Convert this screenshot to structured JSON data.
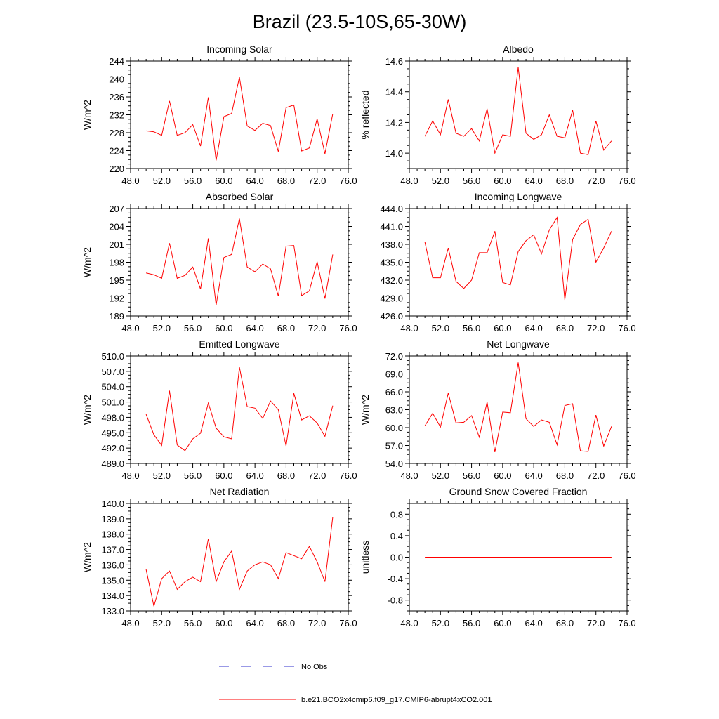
{
  "page": {
    "title": "Brazil (23.5-10S,65-30W)"
  },
  "colors": {
    "model": "#ff0000",
    "obs": "#3333cc",
    "axis": "#000000"
  },
  "chart_data": [
    {
      "type": "line",
      "title": "Incoming Solar",
      "ylabel": "W/m^2",
      "xlim": [
        48,
        76
      ],
      "ylim": [
        220,
        244
      ],
      "xticks": [
        48,
        52,
        56,
        60,
        64,
        68,
        72,
        76
      ],
      "xtick_labels": [
        "48.0",
        "52.0",
        "56.0",
        "60.0",
        "64.0",
        "68.0",
        "72.0",
        "76.0"
      ],
      "yticks": [
        220,
        224,
        228,
        232,
        236,
        240,
        244
      ],
      "ytick_labels": [
        "220",
        "224",
        "228",
        "232",
        "236",
        "240",
        "244"
      ],
      "x": [
        50,
        51,
        52,
        53,
        54,
        55,
        56,
        57,
        58,
        59,
        60,
        61,
        62,
        63,
        64,
        65,
        66,
        67,
        68,
        69,
        70,
        71,
        72,
        73,
        74
      ],
      "series": [
        {
          "name": "b.e21.BCO2x4cmip6.f09_g17.CMIP6-abrupt4xCO2.001",
          "values": [
            228.4,
            228.2,
            227.4,
            235.1,
            227.4,
            228.0,
            229.8,
            225.0,
            235.9,
            221.8,
            231.6,
            232.3,
            240.4,
            229.5,
            228.5,
            230.1,
            229.6,
            223.8,
            233.6,
            234.2,
            223.9,
            224.6,
            231.1,
            223.3,
            232.2
          ]
        }
      ]
    },
    {
      "type": "line",
      "title": "Albedo",
      "ylabel": "% reflected",
      "xlim": [
        48,
        76
      ],
      "ylim": [
        13.9,
        14.6
      ],
      "xticks": [
        48,
        52,
        56,
        60,
        64,
        68,
        72,
        76
      ],
      "xtick_labels": [
        "48.0",
        "52.0",
        "56.0",
        "60.0",
        "64.0",
        "68.0",
        "72.0",
        "76.0"
      ],
      "yticks": [
        14.0,
        14.2,
        14.4,
        14.6
      ],
      "ytick_labels": [
        "14.0",
        "14.2",
        "14.4",
        "14.6"
      ],
      "x": [
        50,
        51,
        52,
        53,
        54,
        55,
        56,
        57,
        58,
        59,
        60,
        61,
        62,
        63,
        64,
        65,
        66,
        67,
        68,
        69,
        70,
        71,
        72,
        73,
        74
      ],
      "series": [
        {
          "name": "b.e21.BCO2x4cmip6.f09_g17.CMIP6-abrupt4xCO2.001",
          "values": [
            14.11,
            14.21,
            14.12,
            14.35,
            14.13,
            14.11,
            14.16,
            14.08,
            14.29,
            14.0,
            14.12,
            14.11,
            14.56,
            14.13,
            14.09,
            14.12,
            14.25,
            14.11,
            14.1,
            14.28,
            14.0,
            13.99,
            14.21,
            14.02,
            14.08
          ]
        }
      ]
    },
    {
      "type": "line",
      "title": "Absorbed Solar",
      "ylabel": "W/m^2",
      "xlim": [
        48,
        76
      ],
      "ylim": [
        189,
        207
      ],
      "xticks": [
        48,
        52,
        56,
        60,
        64,
        68,
        72,
        76
      ],
      "xtick_labels": [
        "48.0",
        "52.0",
        "56.0",
        "60.0",
        "64.0",
        "68.0",
        "72.0",
        "76.0"
      ],
      "yticks": [
        189,
        192,
        195,
        198,
        201,
        204,
        207
      ],
      "ytick_labels": [
        "189",
        "192",
        "195",
        "198",
        "201",
        "204",
        "207"
      ],
      "x": [
        50,
        51,
        52,
        53,
        54,
        55,
        56,
        57,
        58,
        59,
        60,
        61,
        62,
        63,
        64,
        65,
        66,
        67,
        68,
        69,
        70,
        71,
        72,
        73,
        74
      ],
      "series": [
        {
          "name": "b.e21.BCO2x4cmip6.f09_g17.CMIP6-abrupt4xCO2.001",
          "values": [
            196.2,
            195.9,
            195.3,
            201.2,
            195.3,
            195.8,
            197.2,
            193.5,
            202.0,
            190.8,
            198.8,
            199.3,
            205.3,
            197.2,
            196.4,
            197.7,
            196.9,
            192.3,
            200.7,
            200.8,
            192.4,
            193.2,
            198.1,
            191.9,
            199.3
          ]
        }
      ]
    },
    {
      "type": "line",
      "title": "Incoming Longwave",
      "ylabel": "",
      "xlim": [
        48,
        76
      ],
      "ylim": [
        426,
        444
      ],
      "xticks": [
        48,
        52,
        56,
        60,
        64,
        68,
        72,
        76
      ],
      "xtick_labels": [
        "48.0",
        "52.0",
        "56.0",
        "60.0",
        "64.0",
        "68.0",
        "72.0",
        "76.0"
      ],
      "yticks": [
        426,
        429,
        432,
        435,
        438,
        441,
        444
      ],
      "ytick_labels": [
        "426.0",
        "429.0",
        "432.0",
        "435.0",
        "438.0",
        "441.0",
        "444.0"
      ],
      "x": [
        50,
        51,
        52,
        53,
        54,
        55,
        56,
        57,
        58,
        59,
        60,
        61,
        62,
        63,
        64,
        65,
        66,
        67,
        68,
        69,
        70,
        71,
        72,
        73,
        74
      ],
      "series": [
        {
          "name": "b.e21.BCO2x4cmip6.f09_g17.CMIP6-abrupt4xCO2.001",
          "values": [
            438.4,
            432.4,
            432.4,
            437.4,
            431.8,
            430.6,
            432.0,
            436.6,
            436.6,
            440.2,
            431.6,
            431.2,
            436.8,
            438.6,
            439.6,
            436.4,
            440.4,
            442.5,
            428.7,
            438.8,
            441.3,
            442.2,
            435.0,
            437.4,
            440.2
          ]
        }
      ]
    },
    {
      "type": "line",
      "title": "Emitted Longwave",
      "ylabel": "W/m^2",
      "xlim": [
        48,
        76
      ],
      "ylim": [
        489,
        510
      ],
      "xticks": [
        48,
        52,
        56,
        60,
        64,
        68,
        72,
        76
      ],
      "xtick_labels": [
        "48.0",
        "52.0",
        "56.0",
        "60.0",
        "64.0",
        "68.0",
        "72.0",
        "76.0"
      ],
      "yticks": [
        489,
        492,
        495,
        498,
        501,
        504,
        507,
        510
      ],
      "ytick_labels": [
        "489.0",
        "492.0",
        "495.0",
        "498.0",
        "501.0",
        "504.0",
        "507.0",
        "510.0"
      ],
      "x": [
        50,
        51,
        52,
        53,
        54,
        55,
        56,
        57,
        58,
        59,
        60,
        61,
        62,
        63,
        64,
        65,
        66,
        67,
        68,
        69,
        70,
        71,
        72,
        73,
        74
      ],
      "series": [
        {
          "name": "b.e21.BCO2x4cmip6.f09_g17.CMIP6-abrupt4xCO2.001",
          "values": [
            498.6,
            494.6,
            492.5,
            503.2,
            492.6,
            491.5,
            493.8,
            494.9,
            500.8,
            495.9,
            494.2,
            493.8,
            507.8,
            500.1,
            499.8,
            497.8,
            501.2,
            499.5,
            492.4,
            502.7,
            497.5,
            498.3,
            496.9,
            494.3,
            500.3
          ]
        }
      ]
    },
    {
      "type": "line",
      "title": "Net Longwave",
      "ylabel": "W/m^2",
      "xlim": [
        48,
        76
      ],
      "ylim": [
        54,
        72
      ],
      "xticks": [
        48,
        52,
        56,
        60,
        64,
        68,
        72,
        76
      ],
      "xtick_labels": [
        "48.0",
        "52.0",
        "56.0",
        "60.0",
        "64.0",
        "68.0",
        "72.0",
        "76.0"
      ],
      "yticks": [
        54,
        57,
        60,
        63,
        66,
        69,
        72
      ],
      "ytick_labels": [
        "54.0",
        "57.0",
        "60.0",
        "63.0",
        "66.0",
        "69.0",
        "72.0"
      ],
      "x": [
        50,
        51,
        52,
        53,
        54,
        55,
        56,
        57,
        58,
        59,
        60,
        61,
        62,
        63,
        64,
        65,
        66,
        67,
        68,
        69,
        70,
        71,
        72,
        73,
        74
      ],
      "series": [
        {
          "name": "b.e21.BCO2x4cmip6.f09_g17.CMIP6-abrupt4xCO2.001",
          "values": [
            60.3,
            62.4,
            60.1,
            65.8,
            60.8,
            60.9,
            62.0,
            58.4,
            64.3,
            55.9,
            62.6,
            62.5,
            70.9,
            61.5,
            60.2,
            61.3,
            60.9,
            57.1,
            63.7,
            64.0,
            56.1,
            56.0,
            62.1,
            56.9,
            60.2
          ]
        }
      ]
    },
    {
      "type": "line",
      "title": "Net Radiation",
      "ylabel": "W/m^2",
      "xlim": [
        48,
        76
      ],
      "ylim": [
        133,
        140
      ],
      "xticks": [
        48,
        52,
        56,
        60,
        64,
        68,
        72,
        76
      ],
      "xtick_labels": [
        "48.0",
        "52.0",
        "56.0",
        "60.0",
        "64.0",
        "68.0",
        "72.0",
        "76.0"
      ],
      "yticks": [
        133,
        134,
        135,
        136,
        137,
        138,
        139,
        140
      ],
      "ytick_labels": [
        "133.0",
        "134.0",
        "135.0",
        "136.0",
        "137.0",
        "138.0",
        "139.0",
        "140.0"
      ],
      "x": [
        50,
        51,
        52,
        53,
        54,
        55,
        56,
        57,
        58,
        59,
        60,
        61,
        62,
        63,
        64,
        65,
        66,
        67,
        68,
        69,
        70,
        71,
        72,
        73,
        74
      ],
      "series": [
        {
          "name": "b.e21.BCO2x4cmip6.f09_g17.CMIP6-abrupt4xCO2.001",
          "values": [
            135.7,
            133.3,
            135.1,
            135.6,
            134.4,
            134.9,
            135.2,
            134.9,
            137.7,
            134.9,
            136.2,
            136.9,
            134.4,
            135.6,
            136.0,
            136.2,
            136.0,
            135.1,
            136.8,
            136.6,
            136.4,
            137.2,
            136.2,
            134.9,
            139.1
          ]
        }
      ]
    },
    {
      "type": "line",
      "title": "Ground Snow Covered Fraction",
      "ylabel": "unitless",
      "xlim": [
        48,
        76
      ],
      "ylim": [
        -1.0,
        1.0
      ],
      "xticks": [
        48,
        52,
        56,
        60,
        64,
        68,
        72,
        76
      ],
      "xtick_labels": [
        "48.0",
        "52.0",
        "56.0",
        "60.0",
        "64.0",
        "68.0",
        "72.0",
        "76.0"
      ],
      "yticks": [
        -0.8,
        -0.4,
        0.0,
        0.4,
        0.8
      ],
      "ytick_labels": [
        "-0.8",
        "-0.4",
        "0.0",
        "0.4",
        "0.8"
      ],
      "x": [
        50,
        51,
        52,
        53,
        54,
        55,
        56,
        57,
        58,
        59,
        60,
        61,
        62,
        63,
        64,
        65,
        66,
        67,
        68,
        69,
        70,
        71,
        72,
        73,
        74
      ],
      "series": [
        {
          "name": "b.e21.BCO2x4cmip6.f09_g17.CMIP6-abrupt4xCO2.001",
          "values": [
            0,
            0,
            0,
            0,
            0,
            0,
            0,
            0,
            0,
            0,
            0,
            0,
            0,
            0,
            0,
            0,
            0,
            0,
            0,
            0,
            0,
            0,
            0,
            0,
            0
          ]
        }
      ]
    }
  ],
  "legend": [
    {
      "label": "No Obs",
      "style": "dashed",
      "color": "#3333cc"
    },
    {
      "label": "b.e21.BCO2x4cmip6.f09_g17.CMIP6-abrupt4xCO2.001",
      "style": "solid",
      "color": "#ff0000"
    }
  ]
}
